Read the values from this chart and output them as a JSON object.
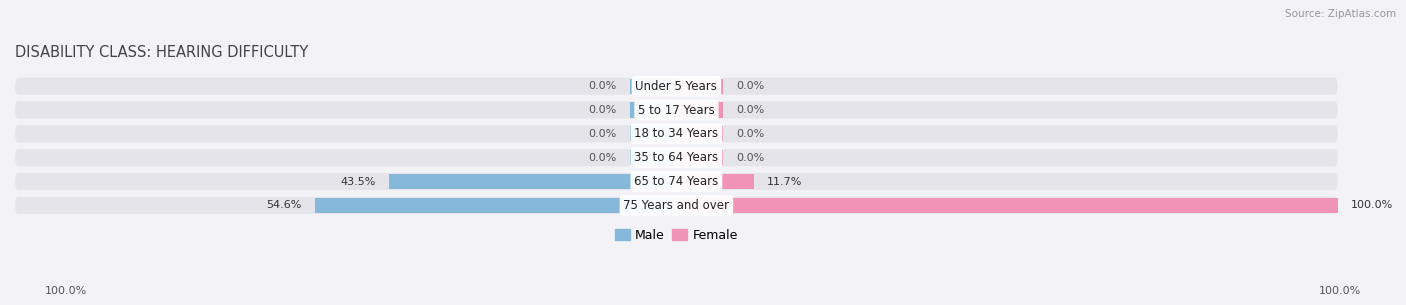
{
  "title": "DISABILITY CLASS: HEARING DIFFICULTY",
  "source": "Source: ZipAtlas.com",
  "categories": [
    "Under 5 Years",
    "5 to 17 Years",
    "18 to 34 Years",
    "35 to 64 Years",
    "65 to 74 Years",
    "75 Years and over"
  ],
  "male_values": [
    0.0,
    0.0,
    0.0,
    0.0,
    43.5,
    54.6
  ],
  "female_values": [
    0.0,
    0.0,
    0.0,
    0.0,
    11.7,
    100.0
  ],
  "male_color": "#85b8d9",
  "female_color": "#f093b4",
  "male_label": "Male",
  "female_label": "Female",
  "bar_bg_color": "#e4e4ea",
  "label_color": "#333333",
  "title_color": "#444444",
  "source_color": "#999999",
  "xlim": 100,
  "axis_label_left": "100.0%",
  "axis_label_right": "100.0%",
  "title_fontsize": 10.5,
  "bar_fontsize": 8,
  "cat_fontsize": 8.5,
  "legend_fontsize": 9,
  "bar_height": 0.72,
  "bg_color": "#f2f2f7",
  "stub_size": 7.0
}
